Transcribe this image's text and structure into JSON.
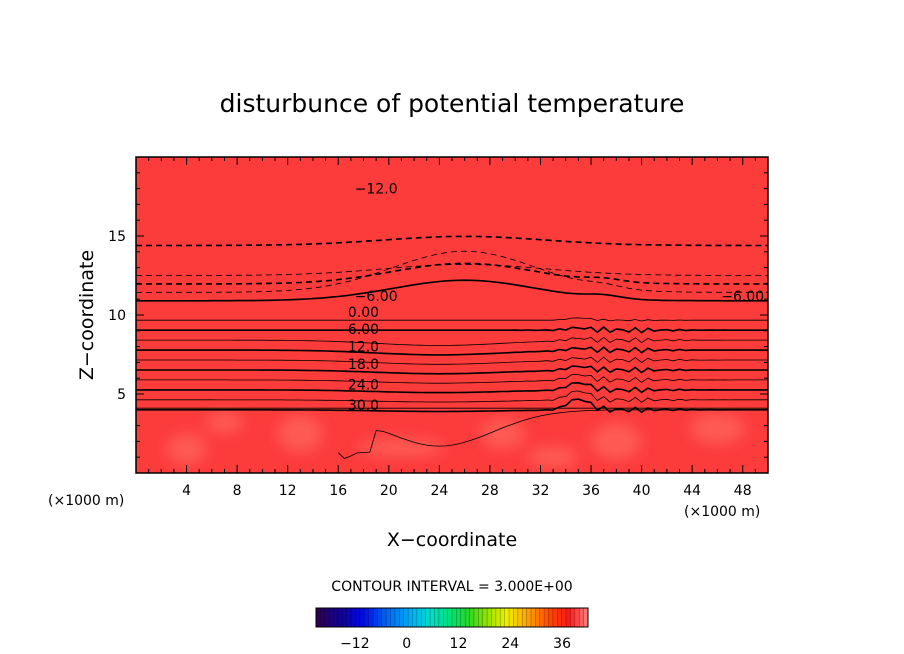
{
  "chart_data": {
    "type": "heatmap",
    "title": "disturbunce of potential temperature",
    "xlabel": "X−coordinate",
    "ylabel": "Z−coordinate",
    "x_unit_left": "(×1000 m)",
    "x_unit_right": "(×1000 m)",
    "xlim": [
      0,
      50
    ],
    "ylim": [
      0,
      20
    ],
    "xticks": [
      4,
      8,
      12,
      16,
      20,
      24,
      28,
      32,
      36,
      40,
      44,
      48
    ],
    "yticks": [
      5,
      10,
      15
    ],
    "contour_interval_text": "CONTOUR INTERVAL = 3.000E+00",
    "contour_labels": [
      {
        "text": "−12.0",
        "x": 19,
        "z": 18.0
      },
      {
        "text": "−6.00",
        "x": 19,
        "z": 11.2
      },
      {
        "text": "−6.00",
        "x": 48,
        "z": 11.2
      },
      {
        "text": "0.00",
        "x": 18,
        "z": 10.2
      },
      {
        "text": "6.00",
        "x": 18,
        "z": 9.1
      },
      {
        "text": "12.0",
        "x": 18,
        "z": 8.0
      },
      {
        "text": "18.0",
        "x": 18,
        "z": 6.9
      },
      {
        "text": "24.0",
        "x": 18,
        "z": 5.6
      },
      {
        "text": "30.0",
        "x": 18,
        "z": 4.3
      }
    ],
    "colorbar": {
      "range": [
        -21,
        42
      ],
      "ticks": [
        -12,
        0,
        12,
        24,
        36
      ]
    }
  }
}
